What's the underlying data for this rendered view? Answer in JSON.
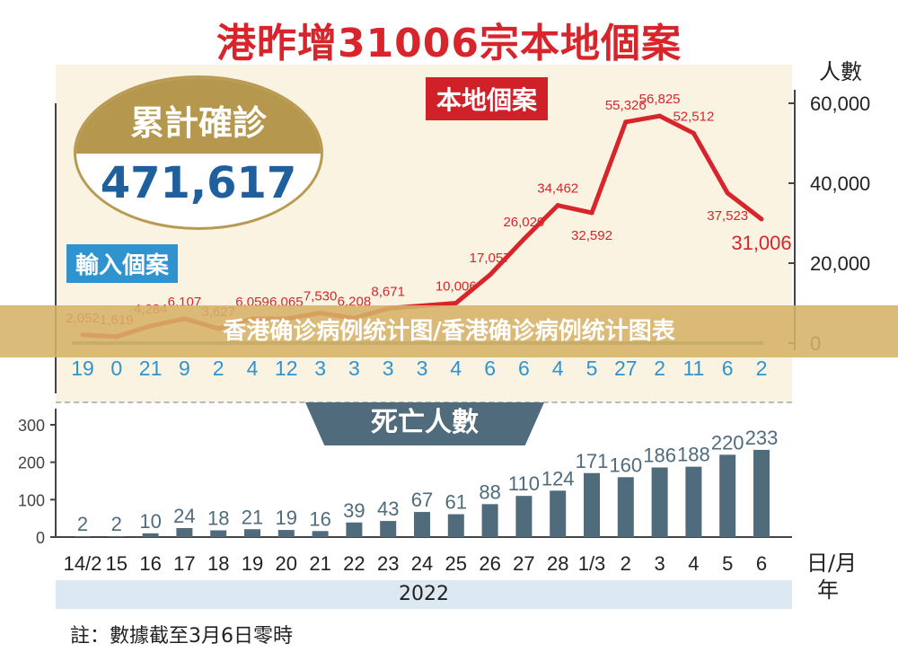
{
  "title": "港昨增31006宗本地個案",
  "y_unit_top": "人數",
  "total": {
    "label": "累計確診",
    "value": "471,617"
  },
  "local_label": "本地個案",
  "imported_label": "輸入個案",
  "deaths_label": "死亡人數",
  "year_label": "2022",
  "x_unit": [
    "日/月",
    "年"
  ],
  "note": "註：數據截至3月6日零時",
  "banner": "香港确诊病例统计图/香港确诊病例统计图表",
  "colors": {
    "local": "#d8252c",
    "imported": "#2f93d0",
    "deaths_bar": "#4f6b7c",
    "baseline": "#5a8a6a",
    "gold": "#b5984d"
  },
  "chart_data": [
    {
      "type": "line",
      "categories": [
        "14/2",
        "15",
        "16",
        "17",
        "18",
        "19",
        "20",
        "21",
        "22",
        "23",
        "24",
        "25",
        "26",
        "27",
        "28",
        "1/3",
        "2",
        "3",
        "4",
        "5",
        "6"
      ],
      "series": [
        {
          "name": "本地個案",
          "values": [
            2052,
            1619,
            4284,
            6107,
            3627,
            6059,
            6065,
            7530,
            6208,
            8671,
            null,
            10006,
            17057,
            26020,
            34462,
            32592,
            55326,
            56825,
            52512,
            37523,
            31006
          ],
          "labels": [
            "2,052",
            "1,619",
            "4,284",
            "6,107",
            "3,627",
            "6,059",
            "6,065",
            "7,530",
            "6,208",
            "8,671",
            "",
            "10,006",
            "17,057",
            "26,020",
            "34,462",
            "32,592",
            "55,326",
            "56,825",
            "52,512",
            "37,523",
            "31,006"
          ]
        },
        {
          "name": "輸入個案",
          "values": [
            19,
            0,
            21,
            9,
            2,
            4,
            12,
            3,
            3,
            3,
            3,
            4,
            6,
            6,
            4,
            5,
            27,
            2,
            11,
            6,
            2
          ]
        }
      ],
      "y_ticks": [
        "0",
        "20,000",
        "40,000",
        "60,000"
      ],
      "ylim": [
        0,
        60000
      ],
      "ylabel": "人數"
    },
    {
      "type": "bar",
      "title": "死亡人數",
      "categories": [
        "14/2",
        "15",
        "16",
        "17",
        "18",
        "19",
        "20",
        "21",
        "22",
        "23",
        "24",
        "25",
        "26",
        "27",
        "28",
        "1/3",
        "2",
        "3",
        "4",
        "5",
        "6"
      ],
      "values": [
        2,
        2,
        10,
        24,
        18,
        21,
        19,
        16,
        39,
        43,
        67,
        61,
        88,
        110,
        124,
        171,
        160,
        186,
        188,
        220,
        233
      ],
      "y_ticks": [
        "0",
        "100",
        "200",
        "300"
      ],
      "ylim": [
        0,
        300
      ]
    }
  ]
}
